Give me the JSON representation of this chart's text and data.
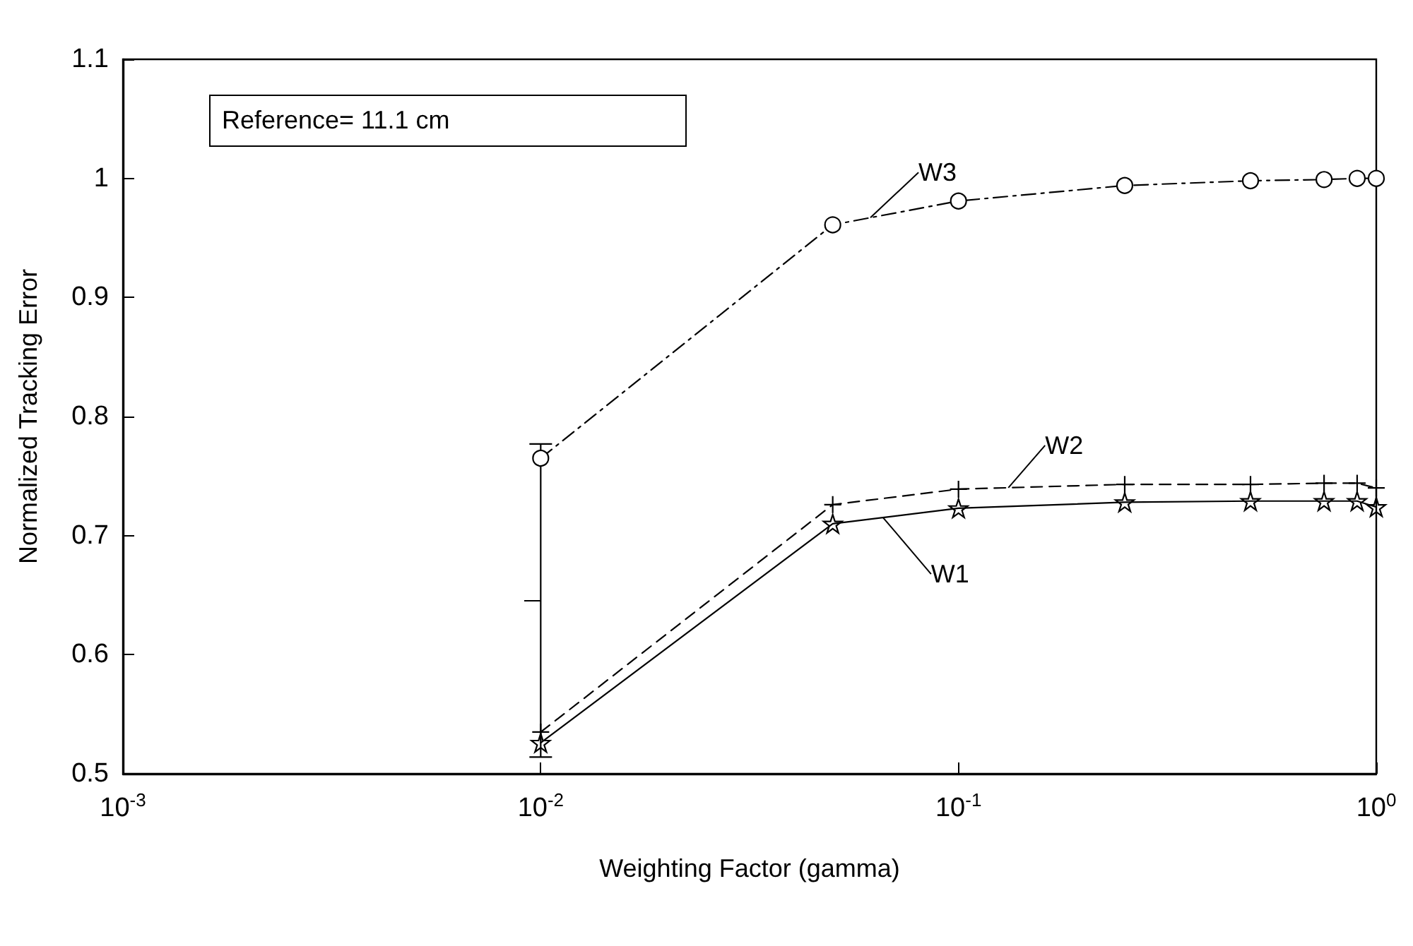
{
  "chart_data": {
    "type": "line",
    "xlabel": "Weighting Factor (gamma)",
    "ylabel": "Normalized Tracking Error",
    "x": [
      0.01,
      0.05,
      0.1,
      0.25,
      0.5,
      0.75,
      0.9,
      1
    ],
    "series": [
      {
        "name": "W1",
        "color": "#000000",
        "marker": "star",
        "line_style": "solid",
        "values": [
          0.526,
          0.71,
          0.723,
          0.728,
          0.729,
          0.729,
          0.729,
          0.724
        ]
      },
      {
        "name": "W2",
        "color": "#000000",
        "marker": "cross",
        "line_style": "dashed",
        "values": [
          0.535,
          0.726,
          0.739,
          0.743,
          0.743,
          0.744,
          0.744,
          0.74
        ]
      },
      {
        "name": "W3",
        "color": "#000000",
        "marker": "circle",
        "line_style": "dotted",
        "values": [
          0.765,
          0.961,
          0.981,
          0.994,
          0.998,
          0.999,
          1.0,
          1.0
        ],
        "errors": [
          [
            0.514,
            0.777
          ],
          null,
          null,
          null,
          null,
          null,
          null,
          null
        ]
      }
    ],
    "log": "x",
    "grid": false,
    "legend": false,
    "xlim": [
      0.001,
      1
    ],
    "xticks": [
      {
        "value": 0.001,
        "label": "10$^{-3}$"
      },
      {
        "value": 0.01,
        "label": "10$^{-2}$"
      },
      {
        "value": 0.1,
        "label": "10$^{-1}$"
      },
      {
        "value": 1,
        "label": "10$^{0}$"
      }
    ],
    "ylim": [
      0.5,
      1.1
    ],
    "yticks": [
      0.5,
      0.6,
      0.7,
      0.8,
      0.9,
      1,
      1.1
    ],
    "annotations": [
      "Reference= 11.1 cm"
    ]
  }
}
